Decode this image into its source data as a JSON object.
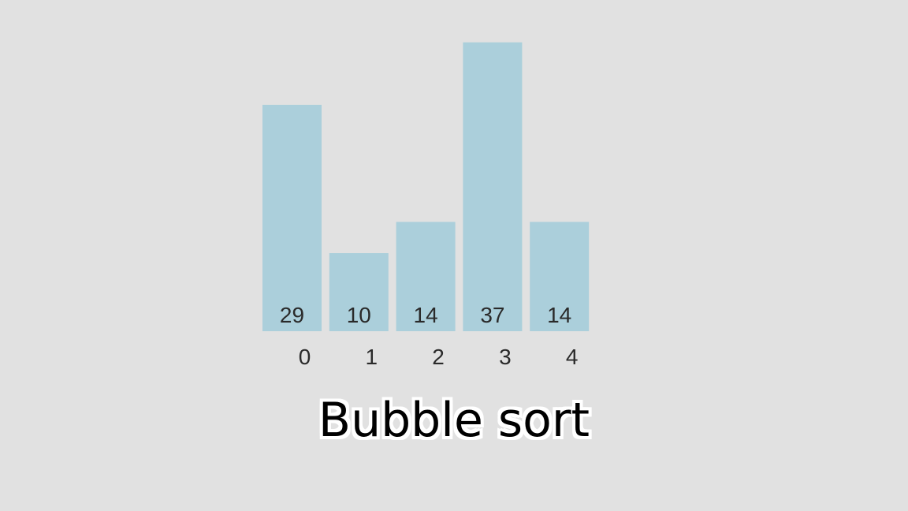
{
  "caption": "Bubble sort",
  "colors": {
    "background": "#e1e1e1",
    "bar": "#abcfdb",
    "text": "#2a2a2a"
  },
  "chart_data": {
    "type": "bar",
    "categories": [
      "0",
      "1",
      "2",
      "3",
      "4"
    ],
    "values": [
      29,
      10,
      14,
      37,
      14
    ],
    "title": "",
    "xlabel": "",
    "ylabel": "",
    "grid": false
  }
}
